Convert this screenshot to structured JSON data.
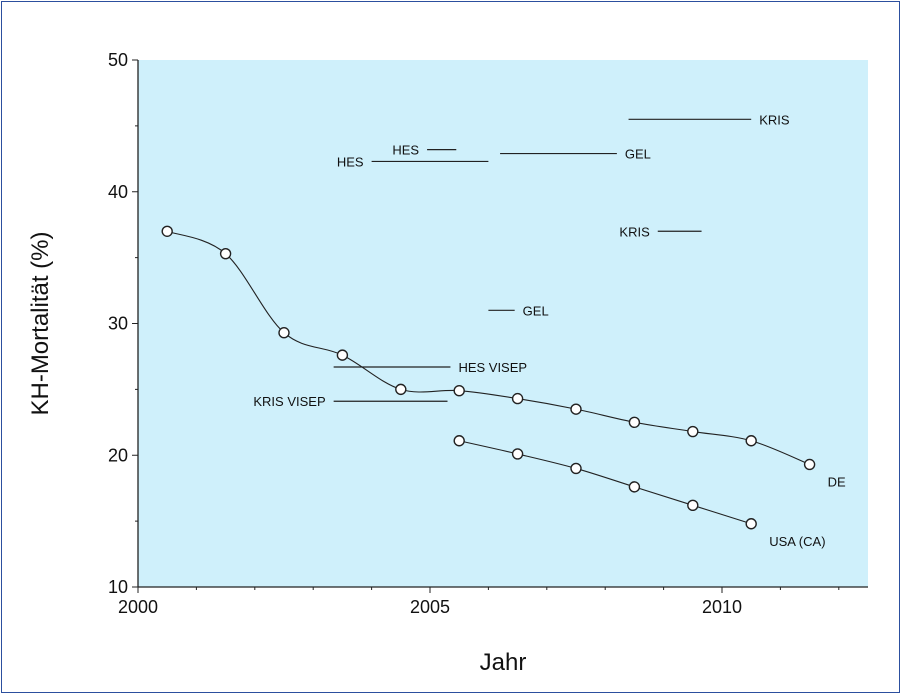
{
  "chart_data": {
    "type": "line",
    "xlabel": "Jahr",
    "ylabel": "KH-Mortalität (%)",
    "xlim": [
      2000,
      2012.5
    ],
    "ylim": [
      10,
      50
    ],
    "x_ticks": [
      2000,
      2005,
      2010
    ],
    "y_ticks": [
      10,
      20,
      30,
      40,
      50
    ],
    "colors": {
      "plot_background": "#cff0fb",
      "line": "#222222",
      "frame_border": "#2c4f9e"
    },
    "series": [
      {
        "name": "DE",
        "x": [
          2000.5,
          2001.5,
          2002.5,
          2003.5,
          2004.5,
          2005.5,
          2006.5,
          2007.5,
          2008.5,
          2009.5,
          2010.5,
          2011.5
        ],
        "y": [
          37.0,
          35.3,
          29.3,
          27.6,
          25.0,
          24.9,
          24.3,
          23.5,
          22.5,
          21.8,
          21.1,
          19.3
        ]
      },
      {
        "name": "USA (CA)",
        "x": [
          2005.5,
          2006.5,
          2007.5,
          2008.5,
          2009.5,
          2010.5
        ],
        "y": [
          21.1,
          20.1,
          19.0,
          17.6,
          16.2,
          14.8
        ]
      }
    ],
    "studies": [
      {
        "label": "KRIS",
        "label_side": "right",
        "x_start": 2008.4,
        "x_end": 2010.5,
        "y": 45.5
      },
      {
        "label": "HES",
        "label_side": "left",
        "x_start": 2004.95,
        "x_end": 2005.45,
        "y": 43.2
      },
      {
        "label": "GEL",
        "label_side": "right",
        "x_start": 2006.2,
        "x_end": 2008.2,
        "y": 42.9
      },
      {
        "label": "HES",
        "label_side": "left",
        "x_start": 2004.0,
        "x_end": 2006.0,
        "y": 42.3
      },
      {
        "label": "KRIS",
        "label_side": "left",
        "x_start": 2008.9,
        "x_end": 2009.65,
        "y": 37.0
      },
      {
        "label": "GEL",
        "label_side": "right",
        "x_start": 2006.0,
        "x_end": 2006.45,
        "y": 31.0
      },
      {
        "label": "HES VISEP",
        "label_side": "right",
        "x_start": 2003.35,
        "x_end": 2005.35,
        "y": 26.7
      },
      {
        "label": "KRIS VISEP",
        "label_side": "left",
        "x_start": 2003.35,
        "x_end": 2005.3,
        "y": 24.1
      }
    ]
  }
}
